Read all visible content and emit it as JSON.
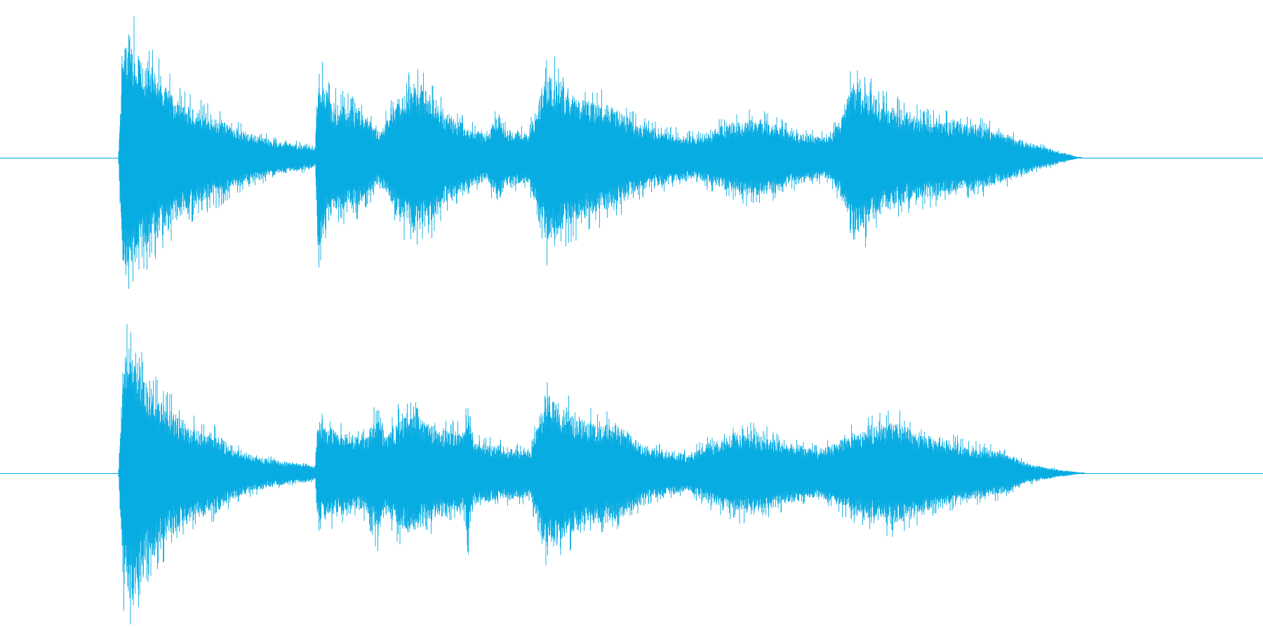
{
  "waveform": {
    "color": "#07ace2",
    "background": "#ffffff",
    "channels": [
      {
        "id": "channel-1",
        "silence_before": 0.0938,
        "sound_end": 0.8559,
        "envelope": [
          [
            0.0938,
            0.02
          ],
          [
            0.097,
            0.88
          ],
          [
            0.1045,
            0.98
          ],
          [
            0.11,
            0.8
          ],
          [
            0.125,
            0.62
          ],
          [
            0.14,
            0.47
          ],
          [
            0.155,
            0.38
          ],
          [
            0.175,
            0.3
          ],
          [
            0.195,
            0.2
          ],
          [
            0.215,
            0.14
          ],
          [
            0.245,
            0.09
          ],
          [
            0.2495,
            0.07
          ],
          [
            0.2515,
            0.72
          ],
          [
            0.262,
            0.44
          ],
          [
            0.285,
            0.38
          ],
          [
            0.3,
            0.2
          ],
          [
            0.315,
            0.47
          ],
          [
            0.328,
            0.58
          ],
          [
            0.34,
            0.52
          ],
          [
            0.352,
            0.36
          ],
          [
            0.37,
            0.24
          ],
          [
            0.385,
            0.18
          ],
          [
            0.395,
            0.36
          ],
          [
            0.4,
            0.22
          ],
          [
            0.418,
            0.2
          ],
          [
            0.425,
            0.38
          ],
          [
            0.433,
            0.68
          ],
          [
            0.445,
            0.58
          ],
          [
            0.465,
            0.46
          ],
          [
            0.485,
            0.4
          ],
          [
            0.505,
            0.26
          ],
          [
            0.53,
            0.2
          ],
          [
            0.55,
            0.16
          ],
          [
            0.57,
            0.24
          ],
          [
            0.59,
            0.3
          ],
          [
            0.61,
            0.28
          ],
          [
            0.63,
            0.2
          ],
          [
            0.655,
            0.16
          ],
          [
            0.665,
            0.28
          ],
          [
            0.675,
            0.62
          ],
          [
            0.685,
            0.56
          ],
          [
            0.7,
            0.42
          ],
          [
            0.72,
            0.34
          ],
          [
            0.74,
            0.3
          ],
          [
            0.76,
            0.28
          ],
          [
            0.78,
            0.24
          ],
          [
            0.8,
            0.17
          ],
          [
            0.82,
            0.1
          ],
          [
            0.84,
            0.04
          ],
          [
            0.8559,
            0.0
          ]
        ]
      },
      {
        "id": "channel-2",
        "silence_before": 0.0938,
        "sound_end": 0.8585,
        "envelope": [
          [
            0.0938,
            0.02
          ],
          [
            0.0975,
            0.82
          ],
          [
            0.1045,
            1.0
          ],
          [
            0.112,
            0.78
          ],
          [
            0.125,
            0.58
          ],
          [
            0.14,
            0.42
          ],
          [
            0.155,
            0.33
          ],
          [
            0.172,
            0.28
          ],
          [
            0.18,
            0.22
          ],
          [
            0.195,
            0.15
          ],
          [
            0.215,
            0.1
          ],
          [
            0.245,
            0.06
          ],
          [
            0.2495,
            0.05
          ],
          [
            0.2515,
            0.38
          ],
          [
            0.27,
            0.3
          ],
          [
            0.29,
            0.28
          ],
          [
            0.3,
            0.5
          ],
          [
            0.305,
            0.26
          ],
          [
            0.315,
            0.42
          ],
          [
            0.325,
            0.46
          ],
          [
            0.345,
            0.34
          ],
          [
            0.368,
            0.3
          ],
          [
            0.37,
            0.55
          ],
          [
            0.375,
            0.24
          ],
          [
            0.395,
            0.2
          ],
          [
            0.42,
            0.18
          ],
          [
            0.432,
            0.62
          ],
          [
            0.445,
            0.5
          ],
          [
            0.46,
            0.4
          ],
          [
            0.49,
            0.36
          ],
          [
            0.51,
            0.2
          ],
          [
            0.53,
            0.16
          ],
          [
            0.545,
            0.14
          ],
          [
            0.56,
            0.22
          ],
          [
            0.58,
            0.3
          ],
          [
            0.6,
            0.3
          ],
          [
            0.625,
            0.22
          ],
          [
            0.65,
            0.18
          ],
          [
            0.67,
            0.28
          ],
          [
            0.69,
            0.36
          ],
          [
            0.71,
            0.38
          ],
          [
            0.73,
            0.3
          ],
          [
            0.75,
            0.24
          ],
          [
            0.77,
            0.2
          ],
          [
            0.795,
            0.16
          ],
          [
            0.81,
            0.08
          ],
          [
            0.83,
            0.04
          ],
          [
            0.8585,
            0.0
          ]
        ]
      }
    ]
  }
}
